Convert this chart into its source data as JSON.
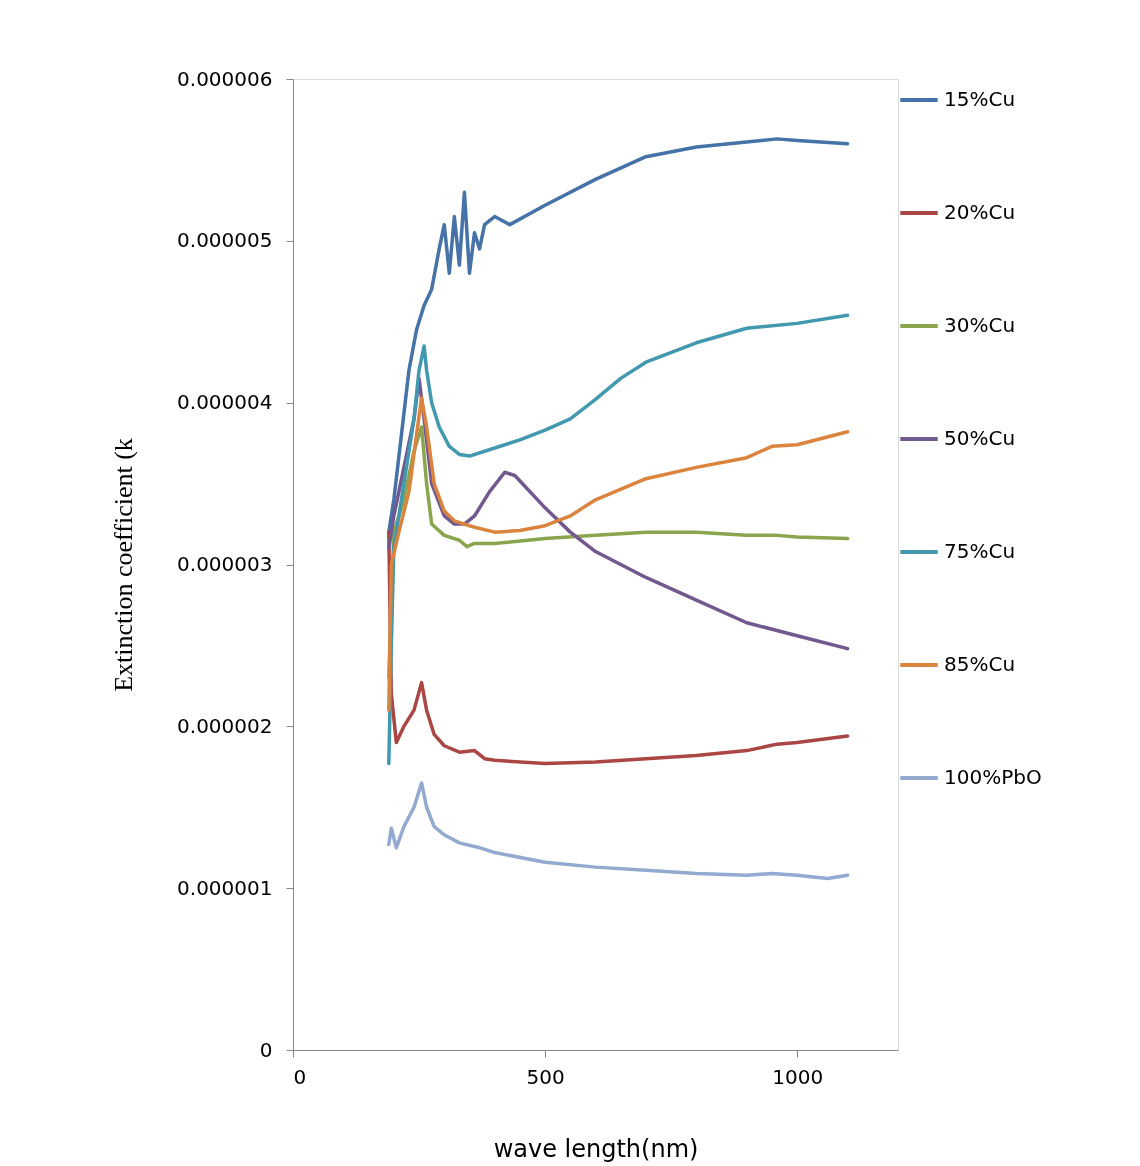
{
  "chart_data": {
    "type": "line",
    "xlabel": "wave length(nm)",
    "ylabel": "Extinction coefficient (k",
    "xlim": [
      0,
      1200
    ],
    "xticks": [
      0,
      500,
      1000
    ],
    "ylim": [
      0,
      6e-06
    ],
    "yticks": [
      {
        "value": 0,
        "label": "0"
      },
      {
        "value": 1e-06,
        "label": "0.000001"
      },
      {
        "value": 2e-06,
        "label": "0.000002"
      },
      {
        "value": 3e-06,
        "label": "0.000003"
      },
      {
        "value": 4e-06,
        "label": "0.000004"
      },
      {
        "value": 5e-06,
        "label": "0.000005"
      },
      {
        "value": 6e-06,
        "label": "0.000006"
      }
    ],
    "grid": false,
    "legend": "right",
    "marker": "none",
    "line_style": "solid",
    "series": [
      {
        "name": "15%Cu",
        "color": "#4572a7",
        "x": [
          190,
          200,
          215,
          230,
          245,
          260,
          275,
          290,
          300,
          310,
          320,
          330,
          340,
          350,
          360,
          370,
          380,
          400,
          430,
          500,
          600,
          700,
          800,
          900,
          960,
          1000,
          1100
        ],
        "values": [
          3.2e-06,
          3.4e-06,
          3.8e-06,
          4.2e-06,
          4.45e-06,
          4.6e-06,
          4.7e-06,
          4.95e-06,
          5.1e-06,
          4.8e-06,
          5.15e-06,
          4.85e-06,
          5.3e-06,
          4.8e-06,
          5.05e-06,
          4.95e-06,
          5.1e-06,
          5.15e-06,
          5.1e-06,
          5.22e-06,
          5.38e-06,
          5.52e-06,
          5.58e-06,
          5.61e-06,
          5.63e-06,
          5.62e-06,
          5.6e-06
        ]
      },
      {
        "name": "20%Cu",
        "color": "#aa4643",
        "x": [
          190,
          195,
          205,
          220,
          240,
          255,
          265,
          280,
          300,
          330,
          360,
          380,
          400,
          500,
          600,
          700,
          800,
          900,
          960,
          1000,
          1100
        ],
        "values": [
          3.2e-06,
          2.2e-06,
          1.9e-06,
          2e-06,
          2.1e-06,
          2.27e-06,
          2.1e-06,
          1.95e-06,
          1.88e-06,
          1.84e-06,
          1.85e-06,
          1.8e-06,
          1.79e-06,
          1.77e-06,
          1.78e-06,
          1.8e-06,
          1.82e-06,
          1.85e-06,
          1.89e-06,
          1.9e-06,
          1.94e-06
        ]
      },
      {
        "name": "30%Cu",
        "color": "#89a54e",
        "x": [
          190,
          200,
          220,
          240,
          255,
          265,
          275,
          300,
          330,
          345,
          360,
          400,
          500,
          600,
          700,
          800,
          900,
          960,
          1000,
          1100
        ],
        "values": [
          2.3e-06,
          3.2e-06,
          3.4e-06,
          3.7e-06,
          3.85e-06,
          3.5e-06,
          3.25e-06,
          3.18e-06,
          3.15e-06,
          3.11e-06,
          3.13e-06,
          3.13e-06,
          3.16e-06,
          3.18e-06,
          3.2e-06,
          3.2e-06,
          3.18e-06,
          3.18e-06,
          3.17e-06,
          3.16e-06
        ]
      },
      {
        "name": "50%Cu",
        "color": "#71588f",
        "x": [
          190,
          200,
          220,
          240,
          250,
          260,
          275,
          300,
          320,
          340,
          360,
          390,
          420,
          440,
          500,
          550,
          600,
          700,
          800,
          900,
          1000,
          1100
        ],
        "values": [
          3.1e-06,
          3.3e-06,
          3.6e-06,
          3.9e-06,
          4.15e-06,
          3.9e-06,
          3.5e-06,
          3.3e-06,
          3.25e-06,
          3.25e-06,
          3.3e-06,
          3.45e-06,
          3.57e-06,
          3.55e-06,
          3.35e-06,
          3.2e-06,
          3.08e-06,
          2.92e-06,
          2.78e-06,
          2.64e-06,
          2.56e-06,
          2.48e-06
        ]
      },
      {
        "name": "75%Cu",
        "color": "#4198af",
        "x": [
          190,
          195,
          200,
          220,
          240,
          250,
          260,
          265,
          275,
          290,
          310,
          330,
          350,
          400,
          450,
          500,
          550,
          600,
          650,
          700,
          800,
          900,
          1000,
          1100
        ],
        "values": [
          1.77e-06,
          2.5e-06,
          3.1e-06,
          3.5e-06,
          3.9e-06,
          4.2e-06,
          4.35e-06,
          4.2e-06,
          4e-06,
          3.85e-06,
          3.73e-06,
          3.68e-06,
          3.67e-06,
          3.72e-06,
          3.77e-06,
          3.83e-06,
          3.9e-06,
          4.02e-06,
          4.15e-06,
          4.25e-06,
          4.37e-06,
          4.46e-06,
          4.49e-06,
          4.54e-06
        ]
      },
      {
        "name": "85%Cu",
        "color": "#db843d",
        "x": [
          190,
          195,
          210,
          230,
          245,
          255,
          265,
          280,
          300,
          320,
          340,
          360,
          400,
          450,
          500,
          550,
          600,
          700,
          800,
          900,
          950,
          1000,
          1100
        ],
        "values": [
          2.1e-06,
          3e-06,
          3.2e-06,
          3.45e-06,
          3.8e-06,
          4.03e-06,
          3.85e-06,
          3.5e-06,
          3.33e-06,
          3.27e-06,
          3.25e-06,
          3.23e-06,
          3.2e-06,
          3.21e-06,
          3.24e-06,
          3.3e-06,
          3.4e-06,
          3.53e-06,
          3.6e-06,
          3.66e-06,
          3.73e-06,
          3.74e-06,
          3.82e-06
        ]
      },
      {
        "name": "100%PbO",
        "color": "#93a9cf",
        "x": [
          190,
          195,
          205,
          220,
          240,
          255,
          265,
          280,
          300,
          330,
          370,
          400,
          500,
          600,
          700,
          800,
          900,
          950,
          1000,
          1060,
          1100
        ],
        "values": [
          1.27e-06,
          1.37e-06,
          1.25e-06,
          1.38e-06,
          1.5e-06,
          1.65e-06,
          1.5e-06,
          1.38e-06,
          1.33e-06,
          1.28e-06,
          1.25e-06,
          1.22e-06,
          1.16e-06,
          1.13e-06,
          1.11e-06,
          1.09e-06,
          1.08e-06,
          1.09e-06,
          1.08e-06,
          1.06e-06,
          1.08e-06
        ]
      }
    ]
  }
}
